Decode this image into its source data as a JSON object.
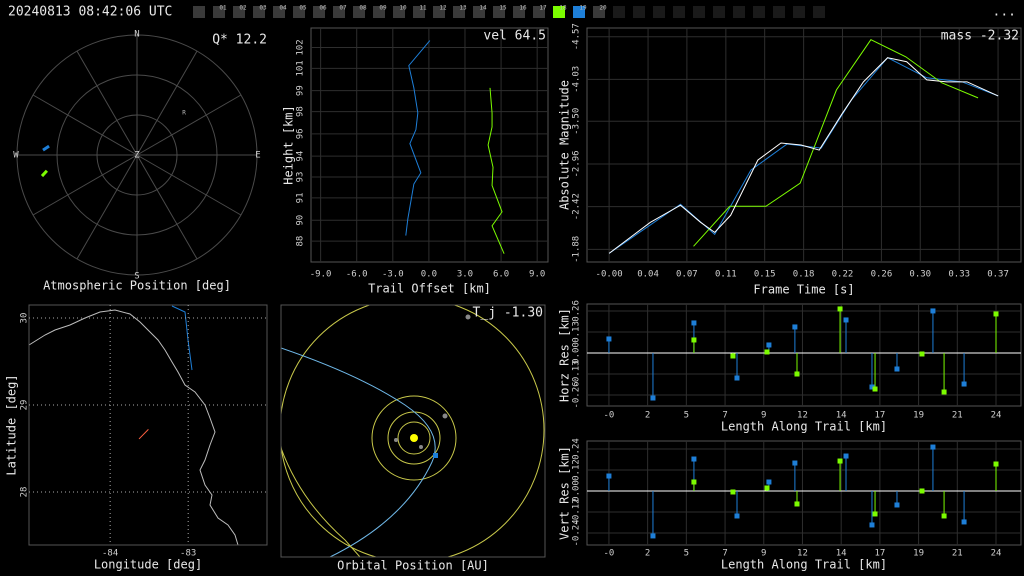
{
  "header": {
    "timestamp": "20240813 08:42:06 UTC",
    "slots": [
      "01",
      "02",
      "03",
      "04",
      "05",
      "06",
      "07",
      "08",
      "09",
      "10",
      "11",
      "12",
      "13",
      "14",
      "15",
      "16",
      "17",
      "18",
      "19",
      "20"
    ],
    "slot_colors": [
      "#3a3a3a",
      "#3a3a3a",
      "#3a3a3a",
      "#3a3a3a",
      "#3a3a3a",
      "#3a3a3a",
      "#3a3a3a",
      "#3a3a3a",
      "#3a3a3a",
      "#3a3a3a",
      "#3a3a3a",
      "#3a3a3a",
      "#3a3a3a",
      "#3a3a3a",
      "#3a3a3a",
      "#3a3a3a",
      "#3a3a3a",
      "#7cfc00",
      "#1e7fd8",
      "#3a3a3a"
    ],
    "menu": "..."
  },
  "chart_data": [
    {
      "type": "polar",
      "xlabel": "Atmospheric Position [deg]",
      "annotation": "Q* 12.2",
      "direction_labels": [
        "N",
        "E",
        "S",
        "W"
      ],
      "center_label": "Z",
      "marker_label": "R",
      "rlim": [
        0,
        90
      ],
      "series": [
        {
          "color": "#1e7fd8",
          "azimuth": [
            273,
            275.8
          ],
          "values": [
            70.6,
            66.3
          ]
        },
        {
          "color": "#7cfc00",
          "azimuth": [
            257.5,
            260.1
          ],
          "values": [
            73.0,
            68.6
          ]
        }
      ]
    },
    {
      "type": "line",
      "xlabel": "Trail Offset [km]",
      "ylabel": "Height [km]",
      "annotation": "vel 64.5",
      "grid": true,
      "xlim": [
        -9.8,
        9.9
      ],
      "ylim": [
        86.7,
        103.5
      ],
      "xticks": [
        {
          "value": -9,
          "label": "-9.0"
        },
        {
          "value": -6,
          "label": "-6.0"
        },
        {
          "value": -3,
          "label": "-3.0"
        },
        {
          "value": 0,
          "label": "0.0"
        },
        {
          "value": 3,
          "label": "3.0"
        },
        {
          "value": 6,
          "label": "6.0"
        },
        {
          "value": 9,
          "label": "9.0"
        }
      ],
      "yticks": [
        {
          "value": 88.2,
          "label": "88"
        },
        {
          "value": 89.7,
          "label": "90"
        },
        {
          "value": 91.3,
          "label": "91"
        },
        {
          "value": 92.8,
          "label": "93"
        },
        {
          "value": 94.3,
          "label": "94"
        },
        {
          "value": 95.9,
          "label": "96"
        },
        {
          "value": 97.5,
          "label": "98"
        },
        {
          "value": 99.0,
          "label": "99"
        },
        {
          "value": 100.6,
          "label": "101"
        },
        {
          "value": 102.1,
          "label": "102"
        }
      ],
      "series": [
        {
          "color": "#1e7fd8",
          "x": [
            0.08,
            -1.67,
            -1.25,
            -0.92,
            -1.08,
            -1.58,
            -0.67,
            -1.25,
            -1.75,
            -1.92
          ],
          "values": [
            102.6,
            100.8,
            99.2,
            97.4,
            96.2,
            95.2,
            93.1,
            92.3,
            89.8,
            88.6
          ]
        },
        {
          "color": "#7cfc00",
          "x": [
            5.08,
            5.25,
            5.25,
            4.92,
            5.33,
            5.25,
            6.08,
            5.25,
            6.25
          ],
          "values": [
            99.2,
            97.4,
            96.4,
            95.1,
            93.5,
            92.2,
            90.3,
            89.3,
            87.3
          ]
        }
      ]
    },
    {
      "type": "line",
      "xlabel": "Frame Time [s]",
      "ylabel": "Absolute Magnitude",
      "annotation": "mass -2.32",
      "grid": true,
      "xlim": [
        -0.021,
        0.3913
      ],
      "ylim": [
        -1.72,
        -4.68
      ],
      "xticks": [
        {
          "value": 0,
          "label": "-0.00"
        },
        {
          "value": 0.037,
          "label": "0.04"
        },
        {
          "value": 0.0739,
          "label": "0.07"
        },
        {
          "value": 0.1109,
          "label": "0.11"
        },
        {
          "value": 0.1478,
          "label": "0.15"
        },
        {
          "value": 0.1848,
          "label": "0.18"
        },
        {
          "value": 0.2217,
          "label": "0.22"
        },
        {
          "value": 0.2587,
          "label": "0.26"
        },
        {
          "value": 0.2956,
          "label": "0.30"
        },
        {
          "value": 0.3326,
          "label": "0.33"
        },
        {
          "value": 0.3695,
          "label": "0.37"
        }
      ],
      "yticks": [
        {
          "value": -4.57,
          "label": "-4.57"
        },
        {
          "value": -4.03,
          "label": "-4.03"
        },
        {
          "value": -3.5,
          "label": "-3.50"
        },
        {
          "value": -2.96,
          "label": "-2.96"
        },
        {
          "value": -2.42,
          "label": "-2.42"
        },
        {
          "value": -1.88,
          "label": "-1.88"
        }
      ],
      "series": [
        {
          "color": "#1e7fd8",
          "x": [
            0,
            0.0678,
            0.1003,
            0.1347,
            0.169,
            0.2015,
            0.2302,
            0.2646,
            0.3018,
            0.3352,
            0.3696
          ],
          "values": [
            -1.829,
            -2.451,
            -2.07,
            -2.882,
            -3.212,
            -3.161,
            -3.77,
            -4.304,
            -4.05,
            -3.999,
            -3.821
          ]
        },
        {
          "color": "#7cfc00",
          "x": [
            0.0802,
            0.1146,
            0.149,
            0.1815,
            0.216,
            0.2487,
            0.2818,
            0.3161,
            0.3505
          ],
          "values": [
            -1.918,
            -2.425,
            -2.425,
            -2.717,
            -3.897,
            -4.532,
            -4.316,
            -3.986,
            -3.796
          ]
        },
        {
          "color": "#ffffff",
          "x": [
            0,
            0.0392,
            0.0678,
            0.0869,
            0.1003,
            0.1155,
            0.1413,
            0.1633,
            0.1824,
            0.1996,
            0.2206,
            0.2416,
            0.2646,
            0.2827,
            0.3018,
            0.3209,
            0.34,
            0.3696
          ],
          "values": [
            -1.829,
            -2.222,
            -2.438,
            -2.222,
            -2.095,
            -2.311,
            -3.009,
            -3.225,
            -3.2,
            -3.136,
            -3.58,
            -3.999,
            -4.304,
            -4.253,
            -4.024,
            -3.999,
            -3.999,
            -3.821
          ]
        }
      ]
    },
    {
      "type": "map",
      "xlabel": "Longitude [deg]",
      "ylabel": "Latitude [deg]",
      "grid": "dotted",
      "xlim": [
        -85.04,
        -81.99
      ],
      "ylim": [
        27.39,
        30.15
      ],
      "xticks": [
        -84,
        -83
      ],
      "yticks": [
        28,
        29,
        30
      ],
      "series": [
        {
          "color": "#ff6040",
          "x": [
            -83.63,
            -83.51
          ],
          "values": [
            28.61,
            28.72
          ]
        }
      ]
    },
    {
      "type": "orbit",
      "xlabel": "Orbital Position [AU]",
      "annotation": "T_j -1.30"
    },
    {
      "type": "stem",
      "xlabel": "Length Along Trail [km]",
      "ylabel": "Horz Res [km]",
      "grid": true,
      "xlim": [
        -1.56,
        25.35
      ],
      "ylim": [
        -0.328,
        0.303
      ],
      "xticks": [
        {
          "value": -0.2,
          "label": "-0"
        },
        {
          "value": 2.2,
          "label": "2"
        },
        {
          "value": 4.6,
          "label": "5"
        },
        {
          "value": 7.0,
          "label": "7"
        },
        {
          "value": 9.4,
          "label": "9"
        },
        {
          "value": 11.8,
          "label": "12"
        },
        {
          "value": 14.2,
          "label": "14"
        },
        {
          "value": 16.6,
          "label": "17"
        },
        {
          "value": 19.0,
          "label": "19"
        },
        {
          "value": 21.4,
          "label": "21"
        },
        {
          "value": 23.8,
          "label": "24"
        }
      ],
      "yticks": [
        0.26,
        0.13,
        {
          "value": 0,
          "label": "0.00"
        },
        -0.13,
        -0.26
      ],
      "series": [
        {
          "color": "#1e7fd8",
          "x": [
            -0.2,
            2.53,
            5.07,
            7.74,
            9.72,
            11.33,
            14.5,
            16.11,
            17.66,
            19.89,
            21.82
          ],
          "values": [
            0.0867,
            -0.2786,
            0.1858,
            -0.1548,
            0.0495,
            0.161,
            0.2043,
            -0.2105,
            -0.0991,
            0.2601,
            -0.192
          ]
        },
        {
          "color": "#7cfc00",
          "x": [
            5.07,
            7.49,
            9.6,
            11.46,
            14.13,
            16.3,
            19.21,
            20.58,
            23.8
          ],
          "values": [
            0.0805,
            -0.0186,
            0.0062,
            -0.13,
            0.2724,
            -0.2229,
            -0.0062,
            -0.2415,
            0.2415
          ]
        }
      ]
    },
    {
      "type": "stem",
      "xlabel": "Length Along Trail [km]",
      "ylabel": "Vert Res [km]",
      "grid": true,
      "xlim": [
        -1.56,
        25.35
      ],
      "ylim": [
        -0.309,
        0.286
      ],
      "xticks": [
        {
          "value": -0.2,
          "label": "-0"
        },
        {
          "value": 2.2,
          "label": "2"
        },
        {
          "value": 4.6,
          "label": "5"
        },
        {
          "value": 7.0,
          "label": "7"
        },
        {
          "value": 9.4,
          "label": "9"
        },
        {
          "value": 11.8,
          "label": "12"
        },
        {
          "value": 14.2,
          "label": "14"
        },
        {
          "value": 16.6,
          "label": "17"
        },
        {
          "value": 19.0,
          "label": "19"
        },
        {
          "value": 21.4,
          "label": "21"
        },
        {
          "value": 23.8,
          "label": "24"
        }
      ],
      "yticks": [
        0.24,
        0.12,
        {
          "value": 0,
          "label": "0.00"
        },
        -0.12,
        -0.24
      ],
      "series": [
        {
          "color": "#1e7fd8",
          "x": [
            -0.2,
            2.53,
            5.07,
            7.74,
            9.72,
            11.33,
            14.5,
            16.11,
            17.66,
            19.89,
            21.82
          ],
          "values": [
            0.0857,
            -0.2571,
            0.1829,
            -0.1429,
            0.0514,
            0.16,
            0.2,
            -0.1943,
            -0.08,
            0.2514,
            -0.1771
          ]
        },
        {
          "color": "#7cfc00",
          "x": [
            5.07,
            7.49,
            9.6,
            11.46,
            14.13,
            16.3,
            19.21,
            20.58,
            23.8
          ],
          "values": [
            0.0514,
            -0.0057,
            0.0171,
            -0.0743,
            0.1714,
            -0.1314,
            0,
            -0.1429,
            0.1543
          ]
        }
      ]
    }
  ]
}
